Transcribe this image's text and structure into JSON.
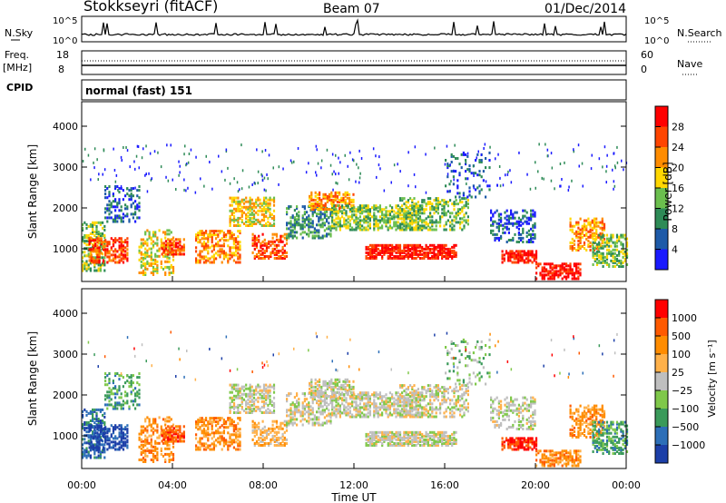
{
  "header": {
    "station": "Stokkseyri (fitACF)",
    "beam": "Beam 07",
    "date": "01/Dec/2014"
  },
  "noise_panel": {
    "left_label": "N.Sky",
    "right_label": "N.Search",
    "ticks_left": [
      "10^5",
      "10^0"
    ],
    "ticks_right": [
      "10^5",
      "10^0"
    ]
  },
  "freq_panel": {
    "left_label_1": "Freq.",
    "left_label_2": "[MHz]",
    "right_label": "Nave",
    "ticks_left": [
      "18",
      "8"
    ],
    "ticks_right": [
      "60",
      "0"
    ]
  },
  "cpid": {
    "label": "CPID",
    "value": "normal (fast) 151"
  },
  "chart_data": [
    {
      "type": "heatmap",
      "title": "",
      "ylabel": "Slant Range [km]",
      "xlabel": "",
      "x_range_hours": [
        0,
        24
      ],
      "ylim": [
        200,
        4600
      ],
      "y_ticks": [
        "1000",
        "2000",
        "3000",
        "4000"
      ],
      "colorbar": {
        "label": "Power [dB]",
        "ticks": [
          "4",
          "8",
          "12",
          "16",
          "20",
          "24",
          "28"
        ],
        "colors": [
          "#1a1aff",
          "#1e5aa8",
          "#2e8b57",
          "#6bbf4e",
          "#ffd700",
          "#ff8c00",
          "#ff4500",
          "#ff0000"
        ]
      }
    },
    {
      "type": "heatmap",
      "title": "",
      "ylabel": "Slant Range [km]",
      "xlabel": "Time UT",
      "x_ticks": [
        "00:00",
        "04:00",
        "08:00",
        "12:00",
        "16:00",
        "20:00",
        "00:00"
      ],
      "x_range_hours": [
        0,
        24
      ],
      "ylim": [
        200,
        4600
      ],
      "y_ticks": [
        "1000",
        "2000",
        "3000",
        "4000"
      ],
      "colorbar": {
        "label": "Velocity [m s⁻¹]",
        "ticks": [
          "1000",
          "500",
          "100",
          "25",
          "−25",
          "−100",
          "−500",
          "−1000"
        ],
        "colors": [
          "#1c3fa8",
          "#2d6fb8",
          "#3a9a5a",
          "#7fc84a",
          "#bfbfbf",
          "#ffb14a",
          "#ff8c00",
          "#ff5a00",
          "#ff0000"
        ]
      }
    }
  ]
}
